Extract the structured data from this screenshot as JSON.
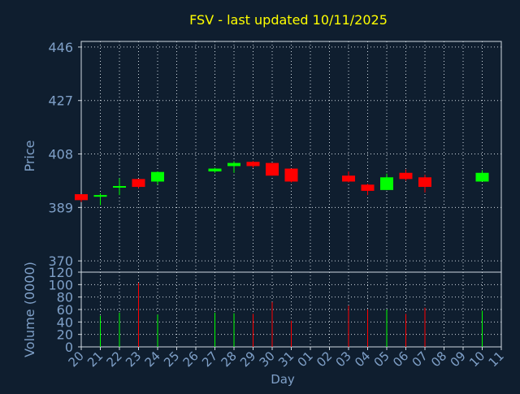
{
  "chart_data": {
    "type": "candlestick",
    "title": "FSV - last updated 10/11/2025",
    "xlabel": "Day",
    "x_tick_labels": [
      "20",
      "21",
      "22",
      "23",
      "24",
      "25",
      "26",
      "27",
      "28",
      "29",
      "30",
      "31",
      "01",
      "02",
      "03",
      "04",
      "05",
      "06",
      "07",
      "08",
      "09",
      "10",
      "11"
    ],
    "price_panel": {
      "ylabel": "Price",
      "ylim": [
        366,
        448
      ],
      "y_ticks": [
        370,
        389,
        408,
        427,
        446
      ],
      "y_tick_labels": [
        "370",
        "389",
        "408",
        "427",
        "446"
      ],
      "candles": [
        {
          "day": "20",
          "open": 393.7,
          "high": 393.7,
          "low": 390.9,
          "close": 391.6,
          "color": "red"
        },
        {
          "day": "21",
          "open": 392.8,
          "high": 394.0,
          "low": 389.8,
          "close": 393.4,
          "color": "green"
        },
        {
          "day": "22",
          "open": 396.1,
          "high": 399.4,
          "low": 393.4,
          "close": 396.6,
          "color": "green"
        },
        {
          "day": "23",
          "open": 399.1,
          "high": 399.1,
          "low": 395.8,
          "close": 396.3,
          "color": "red"
        },
        {
          "day": "24",
          "open": 398.2,
          "high": 401.8,
          "low": 397.1,
          "close": 401.6,
          "color": "green"
        },
        {
          "day": "27",
          "open": 401.8,
          "high": 403.1,
          "low": 401.3,
          "close": 402.8,
          "color": "green"
        },
        {
          "day": "28",
          "open": 403.7,
          "high": 405.4,
          "low": 401.3,
          "close": 404.8,
          "color": "green"
        },
        {
          "day": "29",
          "open": 405.2,
          "high": 405.5,
          "low": 403.1,
          "close": 403.7,
          "color": "red"
        },
        {
          "day": "30",
          "open": 404.8,
          "high": 404.8,
          "low": 400.3,
          "close": 400.3,
          "color": "red"
        },
        {
          "day": "31",
          "open": 402.8,
          "high": 402.8,
          "low": 397.9,
          "close": 398.2,
          "color": "red"
        },
        {
          "day": "03",
          "open": 400.3,
          "high": 401.8,
          "low": 397.9,
          "close": 398.2,
          "color": "red"
        },
        {
          "day": "04",
          "open": 397.1,
          "high": 397.4,
          "low": 393.4,
          "close": 394.9,
          "color": "red"
        },
        {
          "day": "05",
          "open": 395.2,
          "high": 401.0,
          "low": 395.2,
          "close": 399.7,
          "color": "green"
        },
        {
          "day": "06",
          "open": 401.3,
          "high": 402.5,
          "low": 398.5,
          "close": 399.1,
          "color": "red"
        },
        {
          "day": "07",
          "open": 399.7,
          "high": 400.6,
          "low": 394.3,
          "close": 396.3,
          "color": "red"
        },
        {
          "day": "10",
          "open": 398.2,
          "high": 402.2,
          "low": 398.2,
          "close": 401.3,
          "color": "green"
        }
      ]
    },
    "volume_panel": {
      "ylabel": "Volume (0000)",
      "ylim": [
        0,
        120
      ],
      "y_ticks": [
        0,
        20,
        40,
        60,
        80,
        100,
        120
      ],
      "y_tick_labels": [
        "0",
        "20",
        "40",
        "60",
        "80",
        "100",
        "120"
      ],
      "bars": [
        {
          "day": "21",
          "value": 50,
          "color": "green"
        },
        {
          "day": "22",
          "value": 55,
          "color": "green"
        },
        {
          "day": "23",
          "value": 103,
          "color": "red"
        },
        {
          "day": "24",
          "value": 52,
          "color": "green"
        },
        {
          "day": "27",
          "value": 55,
          "color": "green"
        },
        {
          "day": "28",
          "value": 54,
          "color": "green"
        },
        {
          "day": "29",
          "value": 53,
          "color": "red"
        },
        {
          "day": "30",
          "value": 72,
          "color": "red"
        },
        {
          "day": "31",
          "value": 42,
          "color": "red"
        },
        {
          "day": "03",
          "value": 66,
          "color": "red"
        },
        {
          "day": "04",
          "value": 60,
          "color": "red"
        },
        {
          "day": "05",
          "value": 60,
          "color": "green"
        },
        {
          "day": "06",
          "value": 53,
          "color": "red"
        },
        {
          "day": "07",
          "value": 63,
          "color": "red"
        },
        {
          "day": "10",
          "value": 58,
          "color": "green"
        }
      ]
    },
    "grid": true,
    "legend": "none",
    "colors": {
      "background": "#0f1e2f",
      "axis_text": "#7fa0c8",
      "title": "#ffff00",
      "grid": "#cfd8e0",
      "up": "#00ff00",
      "down": "#ff0000"
    }
  }
}
